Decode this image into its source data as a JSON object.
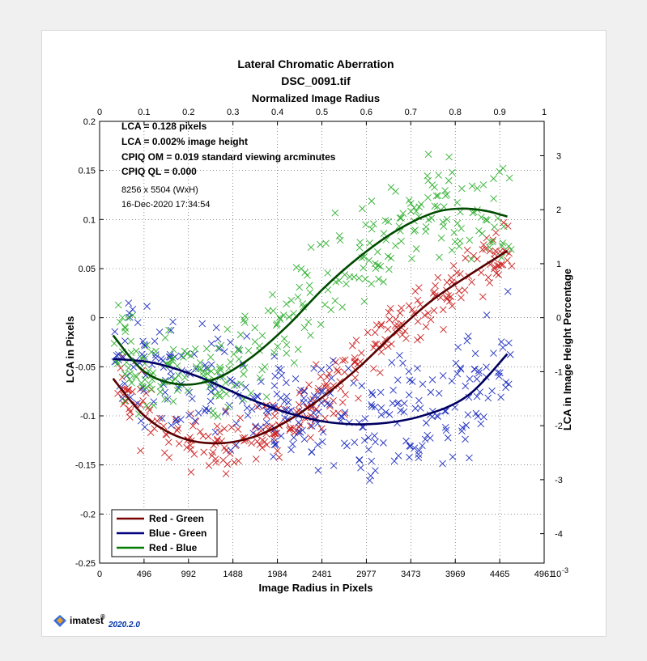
{
  "footer": {
    "brand": "imatest",
    "registered": "®",
    "version": "2020.2.0"
  },
  "chart_data": {
    "type": "scatter",
    "title": "Lateral Chromatic Aberration",
    "subtitle": "DSC_0091.tif",
    "xlabel": "Image Radius in Pixels",
    "ylabel": "LCA in Pixels",
    "x2label": "Normalized Image Radius",
    "y2label": "LCA in Image Height Percentage",
    "xlim": [
      0,
      4961
    ],
    "ylim": [
      -0.25,
      0.2
    ],
    "y2lim": [
      -4.545,
      3.636
    ],
    "xticks": [
      0,
      496,
      992,
      1488,
      1984,
      2481,
      2977,
      3473,
      3969,
      4465,
      4961
    ],
    "xtick_labels": [
      "0",
      "496",
      "992",
      "1488",
      "1984",
      "2481",
      "2977",
      "3473",
      "3969",
      "4465",
      "4961"
    ],
    "x_exponent_label": "10",
    "x_exponent_power": "-3",
    "yticks": [
      -0.25,
      -0.2,
      -0.15,
      -0.1,
      -0.05,
      0,
      0.05,
      0.1,
      0.15,
      0.2
    ],
    "ytick_labels": [
      "-0.25",
      "-0.2",
      "-0.15",
      "-0.1",
      "-0.05",
      "0",
      "0.05",
      "0.1",
      "0.15",
      "0.2"
    ],
    "x2ticks": [
      0,
      0.1,
      0.2,
      0.3,
      0.4,
      0.5,
      0.6,
      0.7,
      0.8,
      0.9,
      1
    ],
    "x2tick_labels": [
      "0",
      "0.1",
      "0.2",
      "0.3",
      "0.4",
      "0.5",
      "0.6",
      "0.7",
      "0.8",
      "0.9",
      "1"
    ],
    "y2ticks": [
      -4,
      -3,
      -2,
      -1,
      0,
      1,
      2,
      3
    ],
    "y2tick_labels": [
      "-4",
      "-3",
      "-2",
      "-1",
      "0",
      "1",
      "2",
      "3"
    ],
    "grid": true,
    "annotations": [
      {
        "text": "LCA = 0.128 pixels",
        "bold": true
      },
      {
        "text": "LCA = 0.002% image height",
        "bold": true
      },
      {
        "text": "CPIQ OM = 0.019 standard viewing arcminutes",
        "bold": true
      },
      {
        "text": "CPIQ QL = 0.000",
        "bold": true
      },
      {
        "text": "8256 x 5504 (WxH)",
        "bold": false
      },
      {
        "text": "16-Dec-2020 17:34:54",
        "bold": false
      }
    ],
    "legend": {
      "position": "bottom-left",
      "entries": [
        {
          "name": "Red - Green",
          "color": "#7a0000"
        },
        {
          "name": "Blue - Green",
          "color": "#000080"
        },
        {
          "name": "Red - Blue",
          "color": "#007a00"
        }
      ]
    },
    "series": [
      {
        "name": "Red - Green",
        "line_color": "#5a0000",
        "marker_color": "#cc2020",
        "x": [
          150,
          500,
          900,
          1300,
          1700,
          2100,
          2500,
          2900,
          3300,
          3700,
          4100,
          4550
        ],
        "y": [
          -0.062,
          -0.1,
          -0.122,
          -0.128,
          -0.122,
          -0.105,
          -0.08,
          -0.05,
          -0.015,
          0.017,
          0.042,
          0.068
        ],
        "scatter": {
          "count": 300,
          "seed": 11,
          "spread": 0.028,
          "x_range": [
            150,
            4600
          ]
        }
      },
      {
        "name": "Blue - Green",
        "line_color": "#000060",
        "marker_color": "#2030c0",
        "x": [
          150,
          600,
          1100,
          1600,
          2100,
          2600,
          3100,
          3600,
          4100,
          4550
        ],
        "y": [
          -0.042,
          -0.046,
          -0.06,
          -0.08,
          -0.097,
          -0.107,
          -0.108,
          -0.1,
          -0.08,
          -0.037
        ],
        "scatter": {
          "count": 330,
          "seed": 23,
          "spread": 0.055,
          "x_range": [
            150,
            4600
          ]
        }
      },
      {
        "name": "Red - Blue",
        "line_color": "#004a00",
        "marker_color": "#30b030",
        "x": [
          150,
          500,
          900,
          1300,
          1700,
          2100,
          2500,
          2900,
          3300,
          3700,
          4000,
          4300,
          4550
        ],
        "y": [
          -0.018,
          -0.055,
          -0.068,
          -0.062,
          -0.04,
          -0.008,
          0.03,
          0.062,
          0.088,
          0.106,
          0.111,
          0.109,
          0.103
        ],
        "scatter": {
          "count": 300,
          "seed": 37,
          "spread": 0.045,
          "x_range": [
            150,
            4600
          ]
        }
      }
    ]
  }
}
